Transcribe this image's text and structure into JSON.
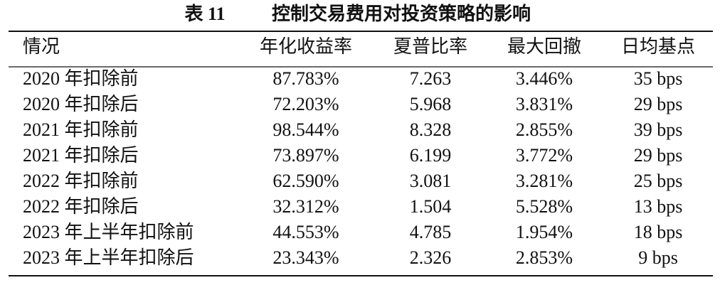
{
  "caption": {
    "label": "表 11",
    "title": "控制交易费用对投资策略的影响"
  },
  "table": {
    "header": [
      "情况",
      "年化收益率",
      "夏普比率",
      "最大回撤",
      "日均基点"
    ],
    "rows": [
      [
        "2020 年扣除前",
        "87.783%",
        "7.263",
        "3.446%",
        "35 bps"
      ],
      [
        "2020 年扣除后",
        "72.203%",
        "5.968",
        "3.831%",
        "29 bps"
      ],
      [
        "2021 年扣除前",
        "98.544%",
        "8.328",
        "2.855%",
        "39 bps"
      ],
      [
        "2021 年扣除后",
        "73.897%",
        "6.199",
        "3.772%",
        "29 bps"
      ],
      [
        "2022 年扣除前",
        "62.590%",
        "3.081",
        "3.281%",
        "25 bps"
      ],
      [
        "2022 年扣除后",
        "32.312%",
        "1.504",
        "5.528%",
        "13 bps"
      ],
      [
        "2023 年上半年扣除前",
        "44.553%",
        "4.785",
        "1.954%",
        "18 bps"
      ],
      [
        "2023 年上半年扣除后",
        "23.343%",
        "2.326",
        "2.853%",
        "9 bps"
      ]
    ]
  }
}
